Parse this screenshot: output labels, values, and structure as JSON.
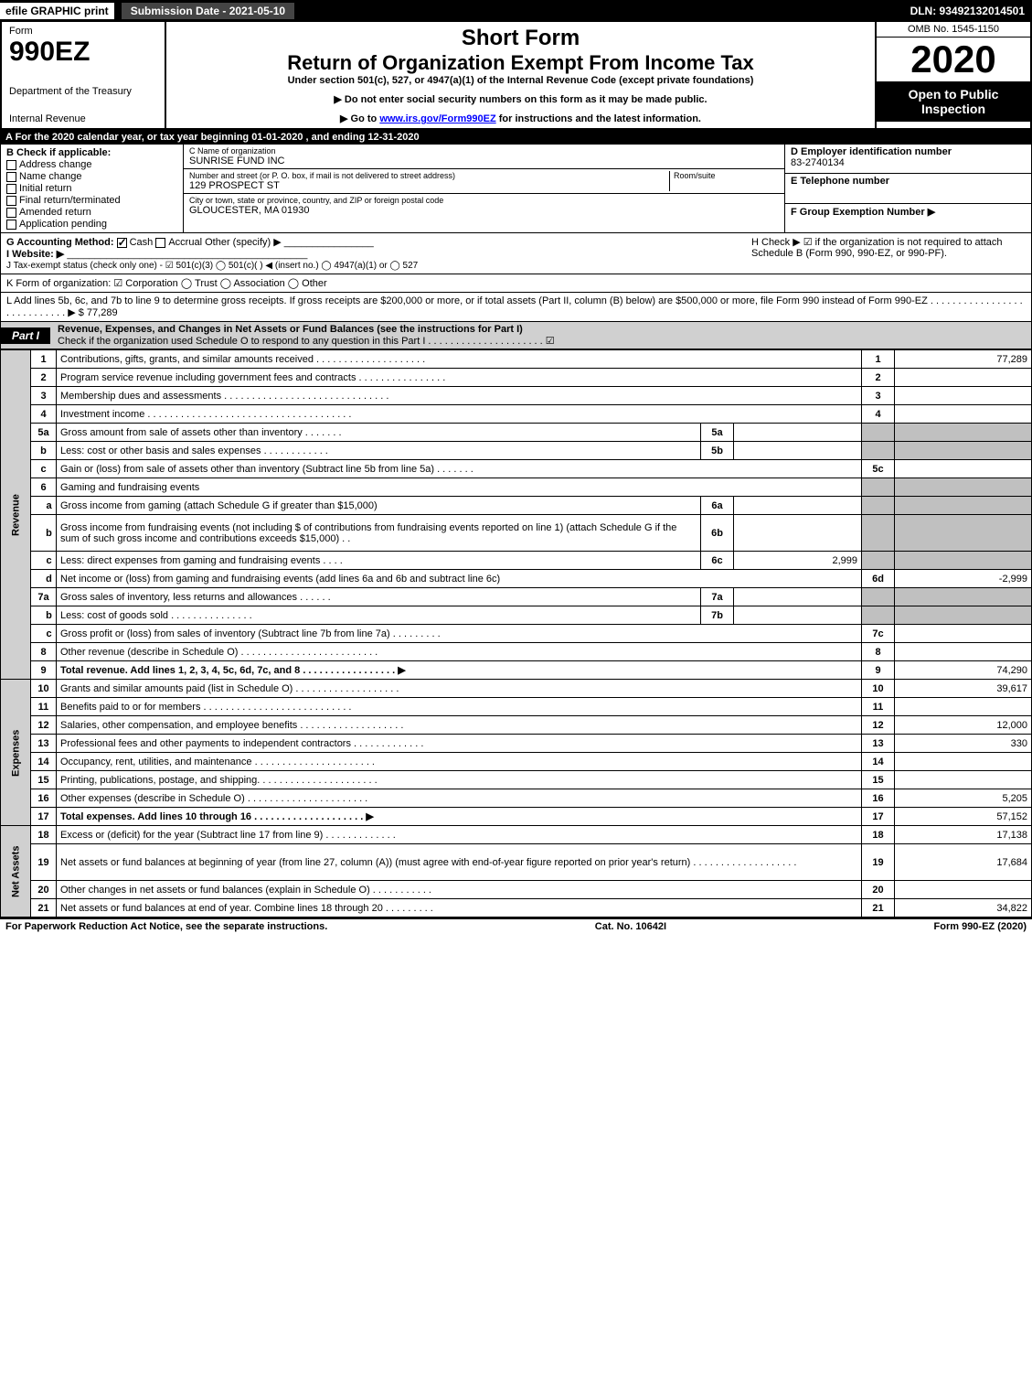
{
  "topbar": {
    "efile": "efile GRAPHIC print",
    "sub": "Submission Date - 2021-05-10",
    "dln": "DLN: 93492132014501"
  },
  "header": {
    "form_label": "Form",
    "form_no": "990EZ",
    "dept": "Department of the Treasury",
    "irs": "Internal Revenue",
    "short": "Short Form",
    "ret": "Return of Organization Exempt From Income Tax",
    "under": "Under section 501(c), 527, or 4947(a)(1) of the Internal Revenue Code (except private foundations)",
    "note1": "▶ Do not enter social security numbers on this form as it may be made public.",
    "note2_pre": "▶ Go to ",
    "note2_link": "www.irs.gov/Form990EZ",
    "note2_post": " for instructions and the latest information.",
    "omb": "OMB No. 1545-1150",
    "year": "2020",
    "open": "Open to Public Inspection"
  },
  "line_a": "A For the 2020 calendar year, or tax year beginning 01-01-2020 , and ending 12-31-2020",
  "block_b": {
    "title": "B  Check if applicable:",
    "items": [
      "Address change",
      "Name change",
      "Initial return",
      "Final return/terminated",
      "Amended return",
      "Application pending"
    ]
  },
  "block_c": {
    "name_lbl": "C Name of organization",
    "name": "SUNRISE FUND INC",
    "addr_lbl": "Number and street (or P. O. box, if mail is not delivered to street address)",
    "room_lbl": "Room/suite",
    "addr": "129 PROSPECT ST",
    "city_lbl": "City or town, state or province, country, and ZIP or foreign postal code",
    "city": "GLOUCESTER, MA  01930"
  },
  "block_d": {
    "d_lbl": "D Employer identification number",
    "ein": "83-2740134",
    "e_lbl": "E Telephone number",
    "f_lbl": "F Group Exemption Number  ▶"
  },
  "g": {
    "lbl": "G Accounting Method:",
    "cash": "Cash",
    "accrual": "Accrual",
    "other": "Other (specify) ▶"
  },
  "h": "H  Check ▶ ☑ if the organization is not required to attach Schedule B (Form 990, 990-EZ, or 990-PF).",
  "i": "I Website: ▶",
  "j": "J Tax-exempt status (check only one) - ☑ 501(c)(3)  ◯ 501(c)(  ) ◀ (insert no.)  ◯ 4947(a)(1) or  ◯ 527",
  "k": "K Form of organization:  ☑ Corporation   ◯ Trust   ◯ Association   ◯ Other",
  "l": "L Add lines 5b, 6c, and 7b to line 9 to determine gross receipts. If gross receipts are $200,000 or more, or if total assets (Part II, column (B) below) are $500,000 or more, file Form 990 instead of Form 990-EZ  .  .  .  .  .  .  .  .  .  .  .  .  .  .  .  .  .  .  .  .  .  .  .  .  .  .  .  . ▶ $ 77,289",
  "part1": {
    "tag": "Part I",
    "title": "Revenue, Expenses, and Changes in Net Assets or Fund Balances (see the instructions for Part I)",
    "sub": "Check if the organization used Schedule O to respond to any question in this Part I  .  .  .  .  .  .  .  .  .  .  .  .  .  .  .  .  .  .  .  .  .  ☑"
  },
  "sections": {
    "revenue": "Revenue",
    "expenses": "Expenses",
    "netassets": "Net Assets"
  },
  "rows": [
    {
      "n": "1",
      "d": "Contributions, gifts, grants, and similar amounts received  .  .  .  .  .  .  .  .  .  .  .  .  .  .  .  .  .  .  .  .",
      "num": "1",
      "amt": "77,289"
    },
    {
      "n": "2",
      "d": "Program service revenue including government fees and contracts  .  .  .  .  .  .  .  .  .  .  .  .  .  .  .  .",
      "num": "2",
      "amt": ""
    },
    {
      "n": "3",
      "d": "Membership dues and assessments  .  .  .  .  .  .  .  .  .  .  .  .  .  .  .  .  .  .  .  .  .  .  .  .  .  .  .  .  .  .",
      "num": "3",
      "amt": ""
    },
    {
      "n": "4",
      "d": "Investment income  .  .  .  .  .  .  .  .  .  .  .  .  .  .  .  .  .  .  .  .  .  .  .  .  .  .  .  .  .  .  .  .  .  .  .  .  .",
      "num": "4",
      "amt": ""
    },
    {
      "n": "5a",
      "d": "Gross amount from sale of assets other than inventory  .  .  .  .  .  .  .",
      "inner": "5a",
      "gray": true
    },
    {
      "n": "b",
      "d": "Less: cost or other basis and sales expenses  .  .  .  .  .  .  .  .  .  .  .  .",
      "inner": "5b",
      "gray": true
    },
    {
      "n": "c",
      "d": "Gain or (loss) from sale of assets other than inventory (Subtract line 5b from line 5a)  .  .  .  .  .  .  .",
      "num": "5c",
      "amt": ""
    },
    {
      "n": "6",
      "d": "Gaming and fundraising events",
      "gray": true,
      "nonum": true
    },
    {
      "n": "a",
      "d": "Gross income from gaming (attach Schedule G if greater than $15,000)",
      "inner": "6a",
      "gray": true,
      "sub": true
    },
    {
      "n": "b",
      "d": "Gross income from fundraising events (not including $                    of contributions from fundraising events reported on line 1) (attach Schedule G if the sum of such gross income and contributions exceeds $15,000)  .  .",
      "inner": "6b",
      "gray": true,
      "sub": true,
      "tall": true
    },
    {
      "n": "c",
      "d": "Less: direct expenses from gaming and fundraising events   .  .  .  .",
      "inner": "6c",
      "inneramt": "2,999",
      "gray": true,
      "sub": true
    },
    {
      "n": "d",
      "d": "Net income or (loss) from gaming and fundraising events (add lines 6a and 6b and subtract line 6c)",
      "num": "6d",
      "amt": "-2,999",
      "sub": true
    },
    {
      "n": "7a",
      "d": "Gross sales of inventory, less returns and allowances  .  .  .  .  .  .",
      "inner": "7a",
      "gray": true
    },
    {
      "n": "b",
      "d": "Less: cost of goods sold   .  .  .  .  .  .  .  .  .  .  .  .  .  .  .",
      "inner": "7b",
      "gray": true,
      "sub": true
    },
    {
      "n": "c",
      "d": "Gross profit or (loss) from sales of inventory (Subtract line 7b from line 7a)  .  .  .  .  .  .  .  .  .",
      "num": "7c",
      "amt": "",
      "sub": true
    },
    {
      "n": "8",
      "d": "Other revenue (describe in Schedule O)  .  .  .  .  .  .  .  .  .  .  .  .  .  .  .  .  .  .  .  .  .  .  .  .  .",
      "num": "8",
      "amt": ""
    },
    {
      "n": "9",
      "d": "Total revenue. Add lines 1, 2, 3, 4, 5c, 6d, 7c, and 8   .  .  .  .  .  .  .  .  .  .  .  .  .  .  .  .  . ▶",
      "num": "9",
      "amt": "74,290",
      "bold": true
    },
    {
      "n": "10",
      "d": "Grants and similar amounts paid (list in Schedule O)  .  .  .  .  .  .  .  .  .  .  .  .  .  .  .  .  .  .  .",
      "num": "10",
      "amt": "39,617"
    },
    {
      "n": "11",
      "d": "Benefits paid to or for members   .  .  .  .  .  .  .  .  .  .  .  .  .  .  .  .  .  .  .  .  .  .  .  .  .  .  .",
      "num": "11",
      "amt": ""
    },
    {
      "n": "12",
      "d": "Salaries, other compensation, and employee benefits  .  .  .  .  .  .  .  .  .  .  .  .  .  .  .  .  .  .  .",
      "num": "12",
      "amt": "12,000"
    },
    {
      "n": "13",
      "d": "Professional fees and other payments to independent contractors  .  .  .  .  .  .  .  .  .  .  .  .  .",
      "num": "13",
      "amt": "330"
    },
    {
      "n": "14",
      "d": "Occupancy, rent, utilities, and maintenance  .  .  .  .  .  .  .  .  .  .  .  .  .  .  .  .  .  .  .  .  .  .",
      "num": "14",
      "amt": ""
    },
    {
      "n": "15",
      "d": "Printing, publications, postage, and shipping.  .  .  .  .  .  .  .  .  .  .  .  .  .  .  .  .  .  .  .  .  .",
      "num": "15",
      "amt": ""
    },
    {
      "n": "16",
      "d": "Other expenses (describe in Schedule O)   .  .  .  .  .  .  .  .  .  .  .  .  .  .  .  .  .  .  .  .  .  .",
      "num": "16",
      "amt": "5,205"
    },
    {
      "n": "17",
      "d": "Total expenses. Add lines 10 through 16   .  .  .  .  .  .  .  .  .  .  .  .  .  .  .  .  .  .  .  . ▶",
      "num": "17",
      "amt": "57,152",
      "bold": true
    },
    {
      "n": "18",
      "d": "Excess or (deficit) for the year (Subtract line 17 from line 9)   .  .  .  .  .  .  .  .  .  .  .  .  .",
      "num": "18",
      "amt": "17,138"
    },
    {
      "n": "19",
      "d": "Net assets or fund balances at beginning of year (from line 27, column (A)) (must agree with end-of-year figure reported on prior year's return)  .  .  .  .  .  .  .  .  .  .  .  .  .  .  .  .  .  .  .",
      "num": "19",
      "amt": "17,684",
      "tall": true
    },
    {
      "n": "20",
      "d": "Other changes in net assets or fund balances (explain in Schedule O)  .  .  .  .  .  .  .  .  .  .  .",
      "num": "20",
      "amt": ""
    },
    {
      "n": "21",
      "d": "Net assets or fund balances at end of year. Combine lines 18 through 20  .  .  .  .  .  .  .  .  .",
      "num": "21",
      "amt": "34,822"
    }
  ],
  "footer": {
    "l": "For Paperwork Reduction Act Notice, see the separate instructions.",
    "c": "Cat. No. 10642I",
    "r": "Form 990-EZ (2020)"
  }
}
